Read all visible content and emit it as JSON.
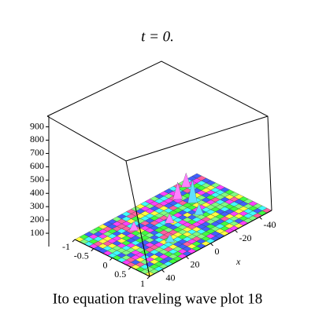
{
  "chart_data": {
    "type": "surface",
    "title": "t = 0.",
    "caption": "Ito equation  traveling wave plot 18",
    "x_label": "x",
    "xlim": [
      -50,
      50
    ],
    "xticks": [
      -40,
      -20,
      0,
      20,
      40
    ],
    "ylim": [
      -1,
      1
    ],
    "yticks": [
      -1,
      -0.5,
      0,
      0.5,
      1
    ],
    "zlim": [
      0,
      980
    ],
    "zticks": [
      100,
      200,
      300,
      400,
      500,
      600,
      700,
      800,
      900
    ]
  }
}
